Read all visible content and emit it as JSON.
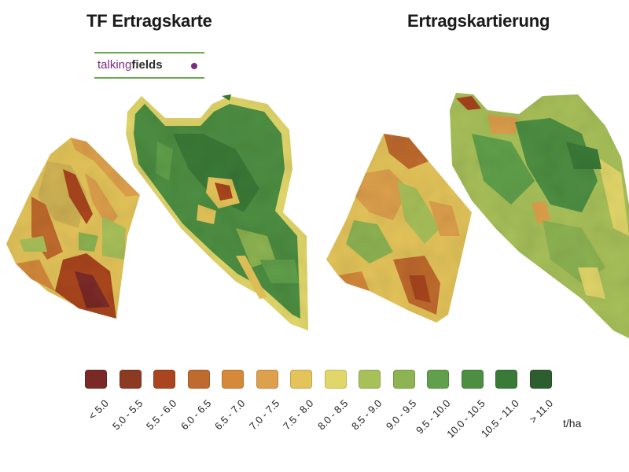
{
  "titles": {
    "left": "TF Ertragskarte",
    "right": "Ertragskartierung"
  },
  "logo": {
    "part1": "talking",
    "part2": "fields"
  },
  "legend": {
    "unit": "t/ha",
    "items": [
      {
        "label": "< 5.0",
        "color": "#7a2a26"
      },
      {
        "label": "5.0 - 5.5",
        "color": "#8c3a22"
      },
      {
        "label": "5.5 - 6.0",
        "color": "#a9461f"
      },
      {
        "label": "6.0 - 6.5",
        "color": "#bf6a2e"
      },
      {
        "label": "6.5 - 7.0",
        "color": "#d48a3a"
      },
      {
        "label": "7.0 - 7.5",
        "color": "#dda04c"
      },
      {
        "label": "7.5 - 8.0",
        "color": "#e3c35a"
      },
      {
        "label": "8.0 - 8.5",
        "color": "#e1d66a"
      },
      {
        "label": "8.5 - 9.0",
        "color": "#a8c05a"
      },
      {
        "label": "9.0 - 9.5",
        "color": "#8db352"
      },
      {
        "label": "9.5 - 10.0",
        "color": "#61a04b"
      },
      {
        "label": "10.0 - 10.5",
        "color": "#4d8f42"
      },
      {
        "label": "10.5 - 11.0",
        "color": "#3a7a38"
      },
      {
        "label": "> 11.0",
        "color": "#2c5e2e"
      }
    ]
  }
}
